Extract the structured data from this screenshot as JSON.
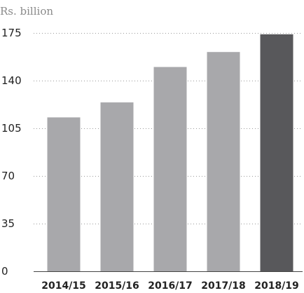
{
  "chart_data": {
    "type": "bar",
    "unit_label": "Rs. billion",
    "categories": [
      "2014/15",
      "2015/16",
      "2016/17",
      "2017/18",
      "2018/19"
    ],
    "values": [
      113,
      124,
      150,
      161,
      174
    ],
    "ylim": [
      0,
      175
    ],
    "yticks": [
      0,
      35,
      70,
      105,
      140,
      175
    ],
    "grid": true,
    "colors": {
      "default": "#a8a8ab",
      "highlight": "#58585b"
    },
    "highlight_index": 4
  }
}
